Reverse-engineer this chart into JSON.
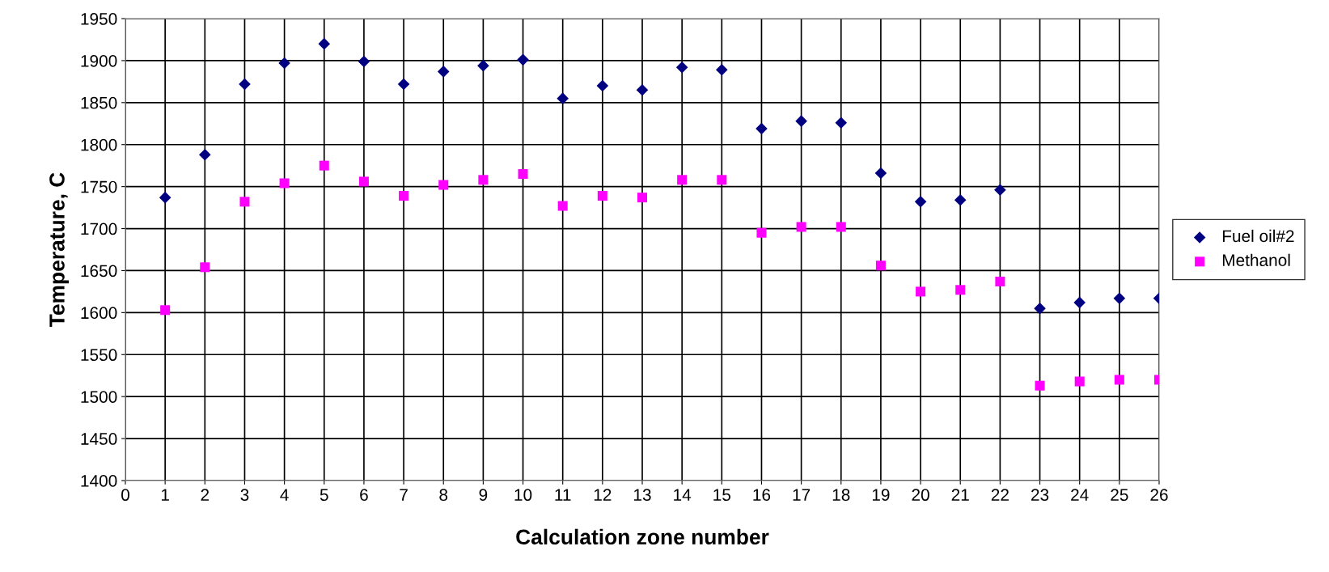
{
  "chart_data": {
    "type": "scatter",
    "xlabel": "Calculation zone number",
    "ylabel": "Temperature, C",
    "x": [
      1,
      2,
      3,
      4,
      5,
      6,
      7,
      8,
      9,
      10,
      11,
      12,
      13,
      14,
      15,
      16,
      17,
      18,
      19,
      20,
      21,
      22,
      23,
      24,
      25,
      26
    ],
    "series": [
      {
        "name": "Fuel oil#2",
        "color": "#000080",
        "marker": "diamond",
        "values": [
          1737,
          1788,
          1872,
          1897,
          1920,
          1899,
          1872,
          1887,
          1894,
          1901,
          1855,
          1870,
          1865,
          1892,
          1889,
          1819,
          1828,
          1826,
          1766,
          1732,
          1734,
          1746,
          1605,
          1612,
          1617,
          1617
        ]
      },
      {
        "name": "Methanol",
        "color": "#ff00ff",
        "marker": "square",
        "values": [
          1603,
          1654,
          1732,
          1754,
          1775,
          1756,
          1739,
          1752,
          1758,
          1765,
          1727,
          1739,
          1737,
          1758,
          1758,
          1695,
          1702,
          1702,
          1656,
          1625,
          1627,
          1637,
          1513,
          1518,
          1520,
          1520
        ]
      }
    ],
    "xlim": [
      0,
      26
    ],
    "xticks": [
      0,
      1,
      2,
      3,
      4,
      5,
      6,
      7,
      8,
      9,
      10,
      11,
      12,
      13,
      14,
      15,
      16,
      17,
      18,
      19,
      20,
      21,
      22,
      23,
      24,
      25,
      26
    ],
    "ylim": [
      1400,
      1950
    ],
    "yticks": [
      1400,
      1450,
      1500,
      1550,
      1600,
      1650,
      1700,
      1750,
      1800,
      1850,
      1900,
      1950
    ],
    "grid": true,
    "legend": "right"
  }
}
